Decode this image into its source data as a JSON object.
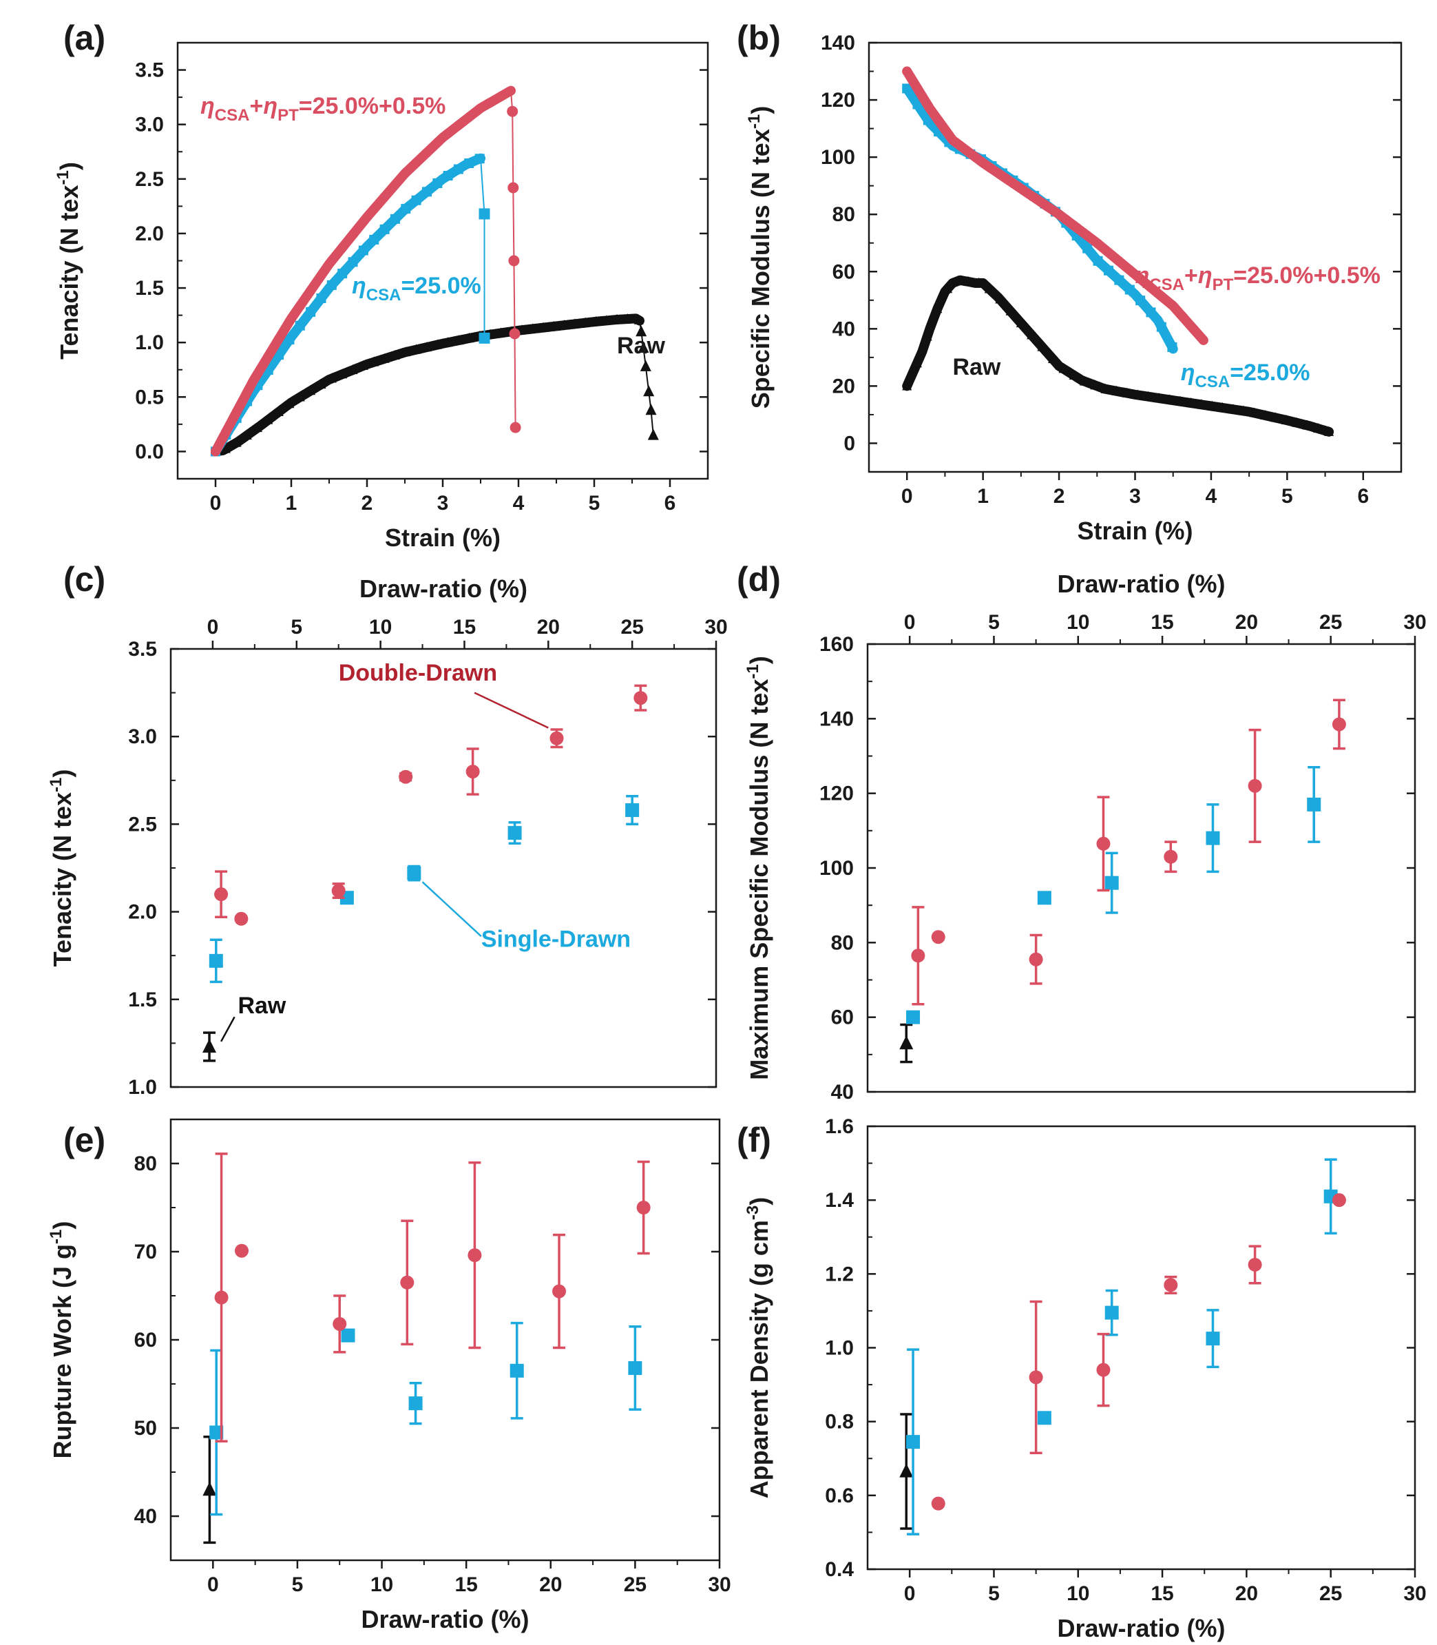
{
  "colors": {
    "red": "#D94E60",
    "blue": "#1BA9DE",
    "black": "#111111",
    "darkred": "#B2232F"
  },
  "chart_data": [
    {
      "panel": "(a)",
      "type": "line",
      "xlabel": "Strain (%)",
      "ylabel": "Tenacity (N tex-1)",
      "xlim": [
        -0.5,
        6.5
      ],
      "ylim": [
        -0.25,
        3.75
      ],
      "xticks": [
        "0",
        "1",
        "2",
        "3",
        "4",
        "5",
        "6"
      ],
      "yticks": [
        "0.0",
        "0.5",
        "1.0",
        "1.5",
        "2.0",
        "2.5",
        "3.0",
        "3.5"
      ],
      "series": [
        {
          "name": "Raw",
          "color": "black",
          "marker": "triangle",
          "x": [
            0,
            0.1,
            0.3,
            0.6,
            1.0,
            1.5,
            2.0,
            2.5,
            3.0,
            3.5,
            4.0,
            4.5,
            5.0,
            5.3,
            5.55,
            5.6
          ],
          "y": [
            0,
            0.01,
            0.09,
            0.24,
            0.45,
            0.66,
            0.8,
            0.91,
            0.99,
            1.06,
            1.11,
            1.15,
            1.19,
            1.21,
            1.22,
            1.2
          ],
          "fracture_x": [
            5.62,
            5.65,
            5.68,
            5.72,
            5.75,
            5.78
          ],
          "fracture_y": [
            1.1,
            0.95,
            0.78,
            0.55,
            0.38,
            0.15
          ]
        },
        {
          "name": "ηCSA=25.0%",
          "color": "blue",
          "marker": "square",
          "x": [
            0,
            0.5,
            1.0,
            1.5,
            2.0,
            2.5,
            3.0,
            3.3,
            3.5
          ],
          "y": [
            0,
            0.55,
            1.05,
            1.5,
            1.88,
            2.22,
            2.5,
            2.63,
            2.69
          ],
          "fracture_x": [
            3.55,
            3.55
          ],
          "fracture_y": [
            2.18,
            1.04
          ]
        },
        {
          "name": "ηCSA+ηPT=25.0%+0.5%",
          "color": "red",
          "marker": "circle",
          "x": [
            0,
            0.5,
            1.0,
            1.5,
            2.0,
            2.5,
            3.0,
            3.5,
            3.9
          ],
          "y": [
            0,
            0.65,
            1.22,
            1.72,
            2.15,
            2.55,
            2.88,
            3.15,
            3.31
          ],
          "fracture_x": [
            3.92,
            3.93,
            3.94,
            3.95,
            3.96
          ],
          "fracture_y": [
            3.12,
            2.42,
            1.75,
            1.08,
            0.22
          ]
        }
      ],
      "annotations": [
        {
          "text": "Raw",
          "x": 5.3,
          "y": 0.9
        },
        {
          "text_parts": [
            "η",
            "CSA",
            "=25.0%"
          ],
          "x": 1.8,
          "y": 1.45
        },
        {
          "text_parts": [
            "η",
            "CSA",
            "+",
            "η",
            "PT",
            "=25.0%+0.5%"
          ],
          "x": -0.2,
          "y": 3.1
        }
      ]
    },
    {
      "panel": "(b)",
      "type": "line",
      "xlabel": "Strain (%)",
      "ylabel": "Specific Modulus (N tex-1)",
      "xlim": [
        -0.5,
        6.5
      ],
      "ylim": [
        -10,
        140
      ],
      "xticks": [
        "0",
        "1",
        "2",
        "3",
        "4",
        "5",
        "6"
      ],
      "yticks": [
        "0",
        "20",
        "40",
        "60",
        "80",
        "100",
        "120",
        "140"
      ],
      "series": [
        {
          "name": "Raw",
          "color": "black",
          "marker": "triangle",
          "x": [
            0,
            0.1,
            0.2,
            0.3,
            0.4,
            0.5,
            0.6,
            0.7,
            0.9,
            1.0,
            1.2,
            1.5,
            1.8,
            2.0,
            2.3,
            2.6,
            3.0,
            3.5,
            4.0,
            4.5,
            5.0,
            5.3,
            5.55
          ],
          "y": [
            20,
            26,
            32,
            40,
            47,
            53,
            56,
            57,
            56,
            56,
            51,
            42,
            33,
            27,
            22,
            19,
            17,
            15,
            13,
            11,
            8,
            6,
            4
          ]
        },
        {
          "name": "ηCSA=25.0%",
          "color": "blue",
          "marker": "square",
          "x": [
            0,
            0.3,
            0.6,
            1.0,
            1.5,
            2.0,
            2.5,
            3.0,
            3.3,
            3.5
          ],
          "y": [
            124,
            112,
            104,
            99,
            90,
            80,
            64,
            52,
            43,
            33
          ]
        },
        {
          "name": "ηCSA+ηPT=25.0%+0.5%",
          "color": "red",
          "marker": "circle",
          "x": [
            0,
            0.3,
            0.6,
            1.0,
            1.5,
            2.0,
            2.5,
            3.0,
            3.5,
            3.9
          ],
          "y": [
            130,
            117,
            106,
            98,
            89,
            80,
            70,
            59,
            48,
            36
          ]
        }
      ],
      "annotations": [
        {
          "text": "Raw",
          "x": 0.6,
          "y": 24
        },
        {
          "text_parts": [
            "η",
            "CSA",
            "=25.0%"
          ],
          "x": 3.6,
          "y": 22
        },
        {
          "text_parts": [
            "η",
            "CSA",
            "+",
            "η",
            "PT",
            "=25.0%+0.5%"
          ],
          "x": 3.0,
          "y": 56
        }
      ]
    },
    {
      "panel": "(c)",
      "type": "scatter",
      "xlabel_top": "Draw-ratio (%)",
      "ylabel": "Tenacity (N tex-1)",
      "xlim": [
        -2.5,
        30
      ],
      "ylim": [
        1.0,
        3.5
      ],
      "xticks": [
        "0",
        "5",
        "10",
        "15",
        "20",
        "25",
        "30"
      ],
      "yticks": [
        "1.0",
        "1.5",
        "2.0",
        "2.5",
        "3.0",
        "3.5"
      ],
      "series": [
        {
          "name": "Raw",
          "color": "black",
          "marker": "triangle",
          "x": [
            -0.2
          ],
          "y": [
            1.23
          ],
          "err": [
            0.08
          ]
        },
        {
          "name": "Single-Drawn",
          "color": "blue",
          "marker": "square",
          "x": [
            0.2,
            8.0,
            12.0,
            18.0,
            25.0
          ],
          "y": [
            1.72,
            2.08,
            2.22,
            2.45,
            2.58
          ],
          "err": [
            0.12,
            0.0,
            0.04,
            0.06,
            0.08
          ]
        },
        {
          "name": "Double-Drawn",
          "color": "red",
          "marker": "circle",
          "x": [
            0.5,
            1.7,
            7.5,
            11.5,
            15.5,
            20.5,
            25.5
          ],
          "y": [
            2.1,
            1.96,
            2.12,
            2.77,
            2.8,
            2.99,
            3.22
          ],
          "err": [
            0.13,
            0.0,
            0.04,
            0.02,
            0.13,
            0.05,
            0.07
          ]
        }
      ],
      "annotations": [
        {
          "text": "Double-Drawn",
          "color": "darkred",
          "x": 7.5,
          "y": 3.32
        },
        {
          "text": "Single-Drawn",
          "color": "blue",
          "x": 16.0,
          "y": 1.8
        },
        {
          "text": "Raw",
          "color": "black",
          "x": 1.5,
          "y": 1.42
        }
      ]
    },
    {
      "panel": "(d)",
      "type": "scatter",
      "xlabel_top": "Draw-ratio (%)",
      "ylabel": "Maximum Specific Modulus (N tex-1)",
      "xlim": [
        -2.5,
        30
      ],
      "ylim": [
        40,
        160
      ],
      "xticks": [
        "0",
        "5",
        "10",
        "15",
        "20",
        "25",
        "30"
      ],
      "yticks": [
        "40",
        "60",
        "80",
        "100",
        "120",
        "140",
        "160"
      ],
      "series": [
        {
          "name": "Raw",
          "color": "black",
          "marker": "triangle",
          "x": [
            -0.2
          ],
          "y": [
            53
          ],
          "err": [
            5
          ]
        },
        {
          "name": "Single-Drawn",
          "color": "blue",
          "marker": "square",
          "x": [
            0.2,
            8.0,
            12.0,
            18.0,
            24.0
          ],
          "y": [
            60,
            92,
            96,
            108,
            117
          ],
          "err": [
            0,
            0,
            8,
            9,
            10
          ]
        },
        {
          "name": "Double-Drawn",
          "color": "red",
          "marker": "circle",
          "x": [
            0.5,
            1.7,
            7.5,
            11.5,
            15.5,
            20.5,
            25.5
          ],
          "y": [
            76.5,
            81.5,
            75.5,
            106.5,
            103,
            122,
            138.5
          ],
          "err": [
            13,
            0,
            6.5,
            12.5,
            4,
            15,
            6.5
          ]
        }
      ]
    },
    {
      "panel": "(e)",
      "type": "scatter",
      "xlabel": "Draw-ratio (%)",
      "ylabel": "Rupture Work (J g-1)",
      "xlim": [
        -2.5,
        30
      ],
      "ylim": [
        35,
        85
      ],
      "xticks": [
        "0",
        "5",
        "10",
        "15",
        "20",
        "25",
        "30"
      ],
      "yticks": [
        "40",
        "50",
        "60",
        "70",
        "80"
      ],
      "series": [
        {
          "name": "Raw",
          "color": "black",
          "marker": "triangle",
          "x": [
            -0.2
          ],
          "y": [
            43
          ],
          "err": [
            6
          ]
        },
        {
          "name": "Single-Drawn",
          "color": "blue",
          "marker": "square",
          "x": [
            0.2,
            8.0,
            12.0,
            18.0,
            25.0
          ],
          "y": [
            49.5,
            60.5,
            52.8,
            56.5,
            56.8
          ],
          "err": [
            9.3,
            0,
            2.3,
            5.4,
            4.7
          ]
        },
        {
          "name": "Double-Drawn",
          "color": "red",
          "marker": "circle",
          "x": [
            0.5,
            1.7,
            7.5,
            11.5,
            15.5,
            20.5,
            25.5
          ],
          "y": [
            64.8,
            70.1,
            61.8,
            66.5,
            69.6,
            65.5,
            75.0
          ],
          "err": [
            16.3,
            0,
            3.2,
            7.0,
            10.5,
            6.4,
            5.2
          ]
        }
      ]
    },
    {
      "panel": "(f)",
      "type": "scatter",
      "xlabel": "Draw-ratio (%)",
      "ylabel": "Apparent Density (g cm-3)",
      "xlim": [
        -2.5,
        30
      ],
      "ylim": [
        0.4,
        1.6
      ],
      "xticks": [
        "0",
        "5",
        "10",
        "15",
        "20",
        "25",
        "30"
      ],
      "yticks": [
        "0.4",
        "0.6",
        "0.8",
        "1.0",
        "1.2",
        "1.4",
        "1.6"
      ],
      "series": [
        {
          "name": "Raw",
          "color": "black",
          "marker": "triangle",
          "x": [
            -0.2
          ],
          "y": [
            0.665
          ],
          "err": [
            0.155
          ]
        },
        {
          "name": "Single-Drawn",
          "color": "blue",
          "marker": "square",
          "x": [
            0.2,
            8.0,
            12.0,
            18.0,
            25.0
          ],
          "y": [
            0.745,
            0.81,
            1.095,
            1.025,
            1.41
          ],
          "err": [
            0.25,
            0,
            0.06,
            0.077,
            0.1
          ]
        },
        {
          "name": "Double-Drawn",
          "color": "red",
          "marker": "circle",
          "x": [
            1.7,
            7.5,
            11.5,
            15.5,
            20.5,
            25.5
          ],
          "y": [
            0.578,
            0.92,
            0.94,
            1.17,
            1.225,
            1.4
          ],
          "err": [
            0,
            0.205,
            0.097,
            0.022,
            0.05,
            0
          ]
        }
      ]
    }
  ]
}
